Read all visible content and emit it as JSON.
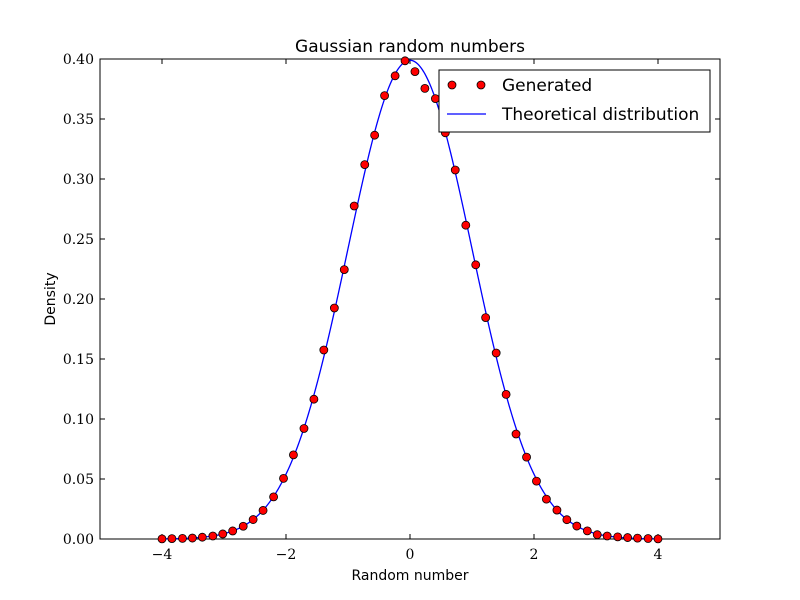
{
  "chart_data": {
    "type": "line",
    "title": "Gaussian random numbers",
    "xlabel": "Random number",
    "ylabel": "Density",
    "xlim": [
      -5,
      5
    ],
    "ylim": [
      0,
      0.4
    ],
    "xticks": [
      -4,
      -2,
      0,
      2,
      4
    ],
    "xtick_labels": [
      "−4",
      "−2",
      "0",
      "2",
      "4"
    ],
    "yticks": [
      0,
      0.05,
      0.1,
      0.15,
      0.2,
      0.25,
      0.3,
      0.35,
      0.4
    ],
    "ytick_labels": [
      "0.00",
      "0.05",
      "0.10",
      "0.15",
      "0.20",
      "0.25",
      "0.30",
      "0.35",
      "0.40"
    ],
    "grid": false,
    "legend_position": "top-right",
    "series": [
      {
        "name": "Generated",
        "kind": "markers",
        "marker_color": "#ff0000",
        "x": [
          -4.0,
          -3.84,
          -3.67,
          -3.51,
          -3.35,
          -3.18,
          -3.02,
          -2.86,
          -2.69,
          -2.53,
          -2.37,
          -2.2,
          -2.04,
          -1.88,
          -1.71,
          -1.55,
          -1.39,
          -1.22,
          -1.06,
          -0.9,
          -0.73,
          -0.57,
          -0.41,
          -0.24,
          -0.08,
          0.08,
          0.24,
          0.41,
          0.57,
          0.73,
          0.9,
          1.06,
          1.22,
          1.39,
          1.55,
          1.71,
          1.88,
          2.04,
          2.2,
          2.37,
          2.53,
          2.69,
          2.86,
          3.02,
          3.18,
          3.35,
          3.51,
          3.67,
          3.84,
          4.0
        ],
        "y": [
          0.0001,
          0.0003,
          0.0005,
          0.0008,
          0.0015,
          0.0025,
          0.0042,
          0.0067,
          0.0106,
          0.0162,
          0.0238,
          0.0351,
          0.0505,
          0.0701,
          0.0921,
          0.1165,
          0.1575,
          0.1925,
          0.2245,
          0.2775,
          0.312,
          0.3365,
          0.3695,
          0.386,
          0.3985,
          0.3895,
          0.3755,
          0.367,
          0.3385,
          0.3075,
          0.2615,
          0.2285,
          0.1845,
          0.155,
          0.1205,
          0.0875,
          0.0682,
          0.0482,
          0.0332,
          0.0241,
          0.0161,
          0.0108,
          0.0068,
          0.0036,
          0.0025,
          0.0018,
          0.0012,
          0.0007,
          0.0004,
          0.0001
        ]
      },
      {
        "name": "Theoretical distribution",
        "kind": "line",
        "line_color": "#0000ff",
        "function": "standard normal pdf",
        "x_range": [
          -4,
          4
        ]
      }
    ]
  }
}
